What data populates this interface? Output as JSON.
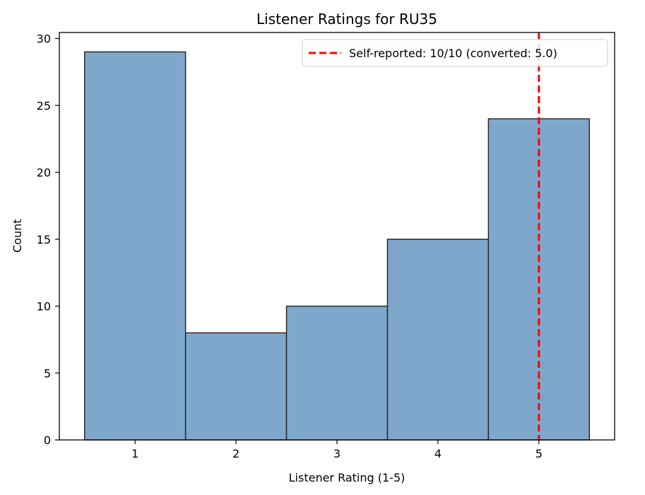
{
  "chart_data": {
    "type": "bar",
    "title": "Listener Ratings for RU35",
    "xlabel": "Listener Rating (1-5)",
    "ylabel": "Count",
    "categories": [
      "1",
      "2",
      "3",
      "4",
      "5"
    ],
    "x": [
      1,
      2,
      3,
      4,
      5
    ],
    "values": [
      29,
      8,
      10,
      15,
      24
    ],
    "xlim": [
      0.25,
      5.75
    ],
    "ylim": [
      0,
      30.45
    ],
    "xticks": [
      "1",
      "2",
      "3",
      "4",
      "5"
    ],
    "yticks": [
      "0",
      "5",
      "10",
      "15",
      "20",
      "25",
      "30"
    ],
    "bar_color": "#7ea7cb",
    "bar_edge_color": "#222222",
    "grid": false,
    "reference_line": {
      "x": 5.0,
      "label": "Self-reported: 10/10 (converted: 5.0)",
      "color": "#ff0000",
      "style": "dashed"
    },
    "legend_position": "top-right"
  }
}
